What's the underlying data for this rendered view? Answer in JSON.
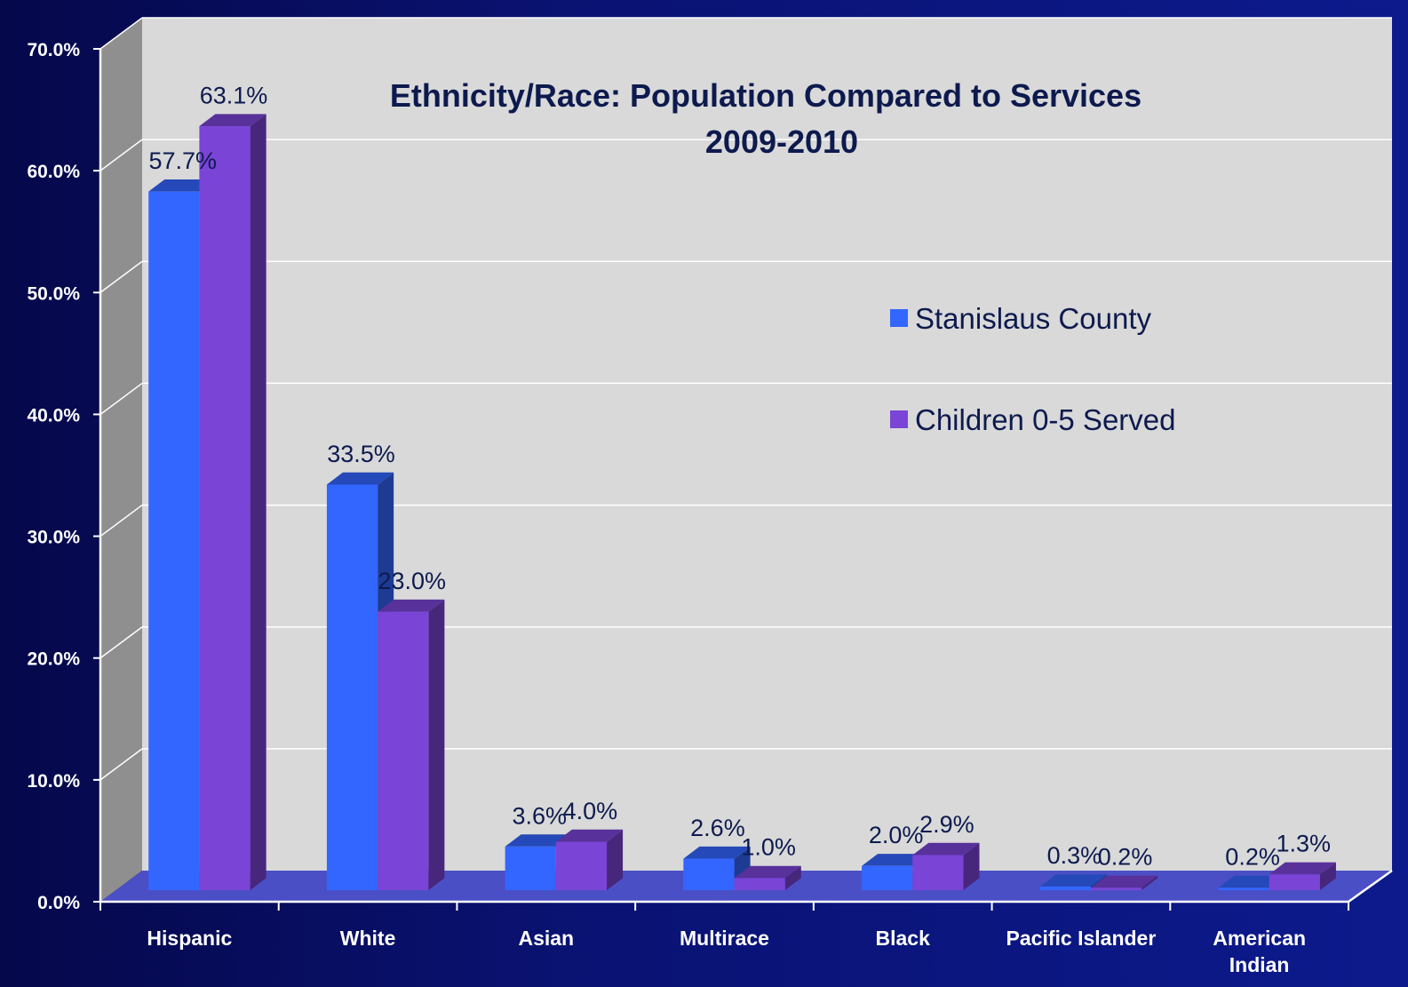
{
  "chart_data": {
    "type": "bar",
    "title": "Ethnicity/Race: Population Compared to Services",
    "subtitle": "2009-2010",
    "categories": [
      "Hispanic",
      "White",
      "Asian",
      "Multirace",
      "Black",
      "Pacific Islander",
      "American Indian"
    ],
    "series": [
      {
        "name": "Stanislaus County",
        "color": "#3366ff",
        "values": [
          57.7,
          33.5,
          3.6,
          2.6,
          2.0,
          0.3,
          0.2
        ],
        "labels": [
          "57.7%",
          "33.5%",
          "3.6%",
          "2.6%",
          "2.0%",
          "0.3%",
          "0.2%"
        ]
      },
      {
        "name": "Children 0-5 Served",
        "color": "#7a44d6",
        "values": [
          63.1,
          23.0,
          4.0,
          1.0,
          2.9,
          0.2,
          1.3
        ],
        "labels": [
          "63.1%",
          "23.0%",
          "4.0%",
          "1.0%",
          "2.9%",
          "0.2%",
          "1.3%"
        ]
      }
    ],
    "y_ticks": [
      "0.0%",
      "10.0%",
      "20.0%",
      "30.0%",
      "40.0%",
      "50.0%",
      "60.0%",
      "70.0%"
    ],
    "ylim": [
      0,
      70
    ],
    "grid": true,
    "legend_position": "right",
    "style": "3d-clustered-column"
  }
}
